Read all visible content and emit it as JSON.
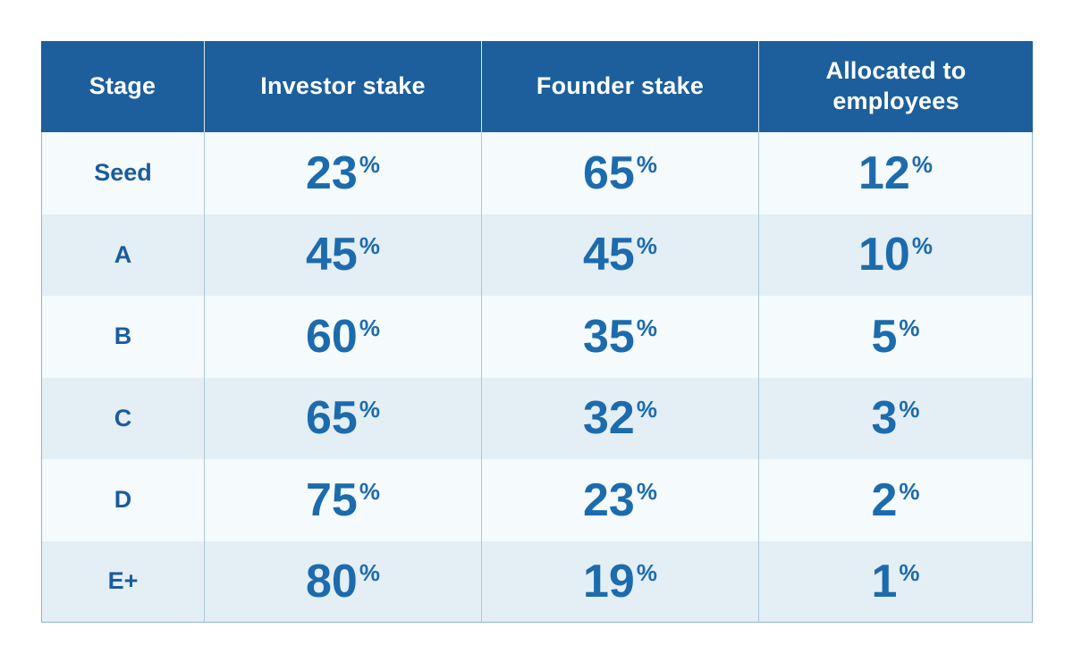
{
  "colors": {
    "header_bg": "#1C5F9C",
    "header_text": "#FFFFFF",
    "number_text": "#1C6BAD",
    "stage_text": "#1A5C9D",
    "row_light": "#F5FAFC",
    "row_alt": "#E4EEF5",
    "body_divider": "#A7C8DC",
    "outer_border": "#8FB6D2",
    "page_bg": "#FFFFFF"
  },
  "table": {
    "percent_symbol": "%",
    "columns": [
      {
        "label": "Stage"
      },
      {
        "label": "Investor stake"
      },
      {
        "label": "Founder stake"
      },
      {
        "label": "Allocated to employees"
      }
    ],
    "rows": [
      {
        "stage": "Seed",
        "investor": "23",
        "founder": "65",
        "employees": "12"
      },
      {
        "stage": "A",
        "investor": "45",
        "founder": "45",
        "employees": "10"
      },
      {
        "stage": "B",
        "investor": "60",
        "founder": "35",
        "employees": "5"
      },
      {
        "stage": "C",
        "investor": "65",
        "founder": "32",
        "employees": "3"
      },
      {
        "stage": "D",
        "investor": "75",
        "founder": "23",
        "employees": "2"
      },
      {
        "stage": "E+",
        "investor": "80",
        "founder": "19",
        "employees": "1"
      }
    ]
  },
  "chart_data": {
    "type": "table",
    "title": "",
    "columns": [
      "Stage",
      "Investor stake",
      "Founder stake",
      "Allocated to employees"
    ],
    "rows": [
      [
        "Seed",
        "23%",
        "65%",
        "12%"
      ],
      [
        "A",
        "45%",
        "45%",
        "10%"
      ],
      [
        "B",
        "60%",
        "35%",
        "5%"
      ],
      [
        "C",
        "65%",
        "32%",
        "3%"
      ],
      [
        "D",
        "75%",
        "23%",
        "2%"
      ],
      [
        "E+",
        "80%",
        "19%",
        "1%"
      ]
    ],
    "units": "percent",
    "legend_position": "none",
    "grid": "striped-rows"
  }
}
